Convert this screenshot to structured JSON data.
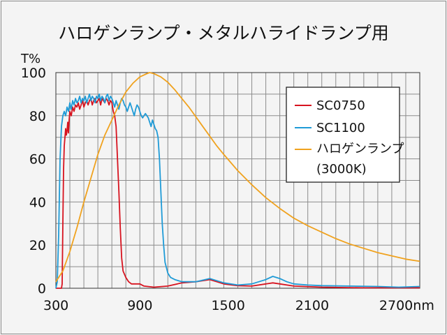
{
  "chart_data": {
    "type": "line",
    "title": "ハロゲンランプ・メタルハライドランプ用",
    "ylabel": "T%",
    "x_unit": "nm",
    "xlim": [
      300,
      2900
    ],
    "ylim": [
      0,
      100
    ],
    "x_ticks": [
      300,
      900,
      1500,
      2100,
      2700
    ],
    "x_tick_labels": [
      "300",
      "900",
      "1500",
      "2100",
      "2700nm"
    ],
    "y_ticks": [
      0,
      20,
      40,
      60,
      80,
      100
    ],
    "y_tick_labels": [
      "0",
      "20",
      "40",
      "60",
      "80",
      "100"
    ],
    "grid": true,
    "legend_position": "top-right",
    "series": [
      {
        "name": "SC0750",
        "color": "#d7131f",
        "points": [
          [
            300,
            0
          ],
          [
            340,
            0
          ],
          [
            345,
            2
          ],
          [
            350,
            30
          ],
          [
            355,
            55
          ],
          [
            360,
            66
          ],
          [
            365,
            70
          ],
          [
            370,
            74
          ],
          [
            375,
            71
          ],
          [
            380,
            73
          ],
          [
            385,
            77
          ],
          [
            390,
            72
          ],
          [
            395,
            78
          ],
          [
            400,
            82
          ],
          [
            410,
            80
          ],
          [
            420,
            84
          ],
          [
            430,
            82
          ],
          [
            440,
            85
          ],
          [
            450,
            84
          ],
          [
            460,
            86
          ],
          [
            470,
            83
          ],
          [
            480,
            85
          ],
          [
            490,
            87
          ],
          [
            500,
            84
          ],
          [
            510,
            86
          ],
          [
            520,
            87
          ],
          [
            530,
            85
          ],
          [
            540,
            87
          ],
          [
            550,
            88
          ],
          [
            560,
            85
          ],
          [
            570,
            87
          ],
          [
            580,
            88
          ],
          [
            590,
            86
          ],
          [
            600,
            87
          ],
          [
            610,
            88
          ],
          [
            620,
            85
          ],
          [
            630,
            88
          ],
          [
            640,
            87
          ],
          [
            650,
            86
          ],
          [
            660,
            88
          ],
          [
            670,
            87
          ],
          [
            680,
            85
          ],
          [
            690,
            87
          ],
          [
            700,
            86
          ],
          [
            710,
            82
          ],
          [
            720,
            80
          ],
          [
            730,
            75
          ],
          [
            740,
            60
          ],
          [
            750,
            45
          ],
          [
            760,
            28
          ],
          [
            770,
            14
          ],
          [
            780,
            8
          ],
          [
            800,
            5
          ],
          [
            820,
            3
          ],
          [
            840,
            2
          ],
          [
            870,
            2
          ],
          [
            900,
            2
          ],
          [
            930,
            1
          ],
          [
            1000,
            0.5
          ],
          [
            1100,
            1
          ],
          [
            1200,
            2.5
          ],
          [
            1300,
            3
          ],
          [
            1400,
            4
          ],
          [
            1450,
            3
          ],
          [
            1500,
            2
          ],
          [
            1600,
            1.2
          ],
          [
            1700,
            1
          ],
          [
            1800,
            2
          ],
          [
            1850,
            2.5
          ],
          [
            1900,
            2
          ],
          [
            2000,
            1
          ],
          [
            2200,
            0.5
          ],
          [
            2500,
            0.2
          ],
          [
            2900,
            0.2
          ]
        ]
      },
      {
        "name": "SC1100",
        "color": "#1f9bd7",
        "points": [
          [
            300,
            0
          ],
          [
            310,
            3
          ],
          [
            320,
            25
          ],
          [
            330,
            60
          ],
          [
            340,
            75
          ],
          [
            350,
            80
          ],
          [
            360,
            82
          ],
          [
            370,
            80
          ],
          [
            380,
            84
          ],
          [
            390,
            82
          ],
          [
            400,
            86
          ],
          [
            410,
            83
          ],
          [
            420,
            87
          ],
          [
            430,
            85
          ],
          [
            440,
            88
          ],
          [
            450,
            86
          ],
          [
            460,
            87
          ],
          [
            470,
            89
          ],
          [
            480,
            86
          ],
          [
            490,
            88
          ],
          [
            500,
            87
          ],
          [
            510,
            89
          ],
          [
            520,
            86
          ],
          [
            530,
            88
          ],
          [
            540,
            90
          ],
          [
            550,
            87
          ],
          [
            560,
            89
          ],
          [
            570,
            88
          ],
          [
            580,
            86
          ],
          [
            590,
            89
          ],
          [
            600,
            88
          ],
          [
            610,
            90
          ],
          [
            620,
            87
          ],
          [
            630,
            89
          ],
          [
            640,
            88
          ],
          [
            650,
            86
          ],
          [
            660,
            89
          ],
          [
            670,
            90
          ],
          [
            680,
            87
          ],
          [
            690,
            89
          ],
          [
            700,
            88
          ],
          [
            710,
            86
          ],
          [
            720,
            84
          ],
          [
            730,
            87
          ],
          [
            740,
            85
          ],
          [
            750,
            83
          ],
          [
            760,
            86
          ],
          [
            770,
            88
          ],
          [
            780,
            87
          ],
          [
            790,
            85
          ],
          [
            800,
            84
          ],
          [
            810,
            82
          ],
          [
            820,
            84
          ],
          [
            830,
            86
          ],
          [
            840,
            84
          ],
          [
            850,
            82
          ],
          [
            860,
            80
          ],
          [
            870,
            83
          ],
          [
            880,
            85
          ],
          [
            890,
            84
          ],
          [
            900,
            82
          ],
          [
            910,
            80
          ],
          [
            920,
            79
          ],
          [
            930,
            80
          ],
          [
            940,
            81
          ],
          [
            950,
            80
          ],
          [
            960,
            79
          ],
          [
            970,
            77
          ],
          [
            980,
            75
          ],
          [
            990,
            78
          ],
          [
            1000,
            76
          ],
          [
            1010,
            74
          ],
          [
            1020,
            73
          ],
          [
            1030,
            70
          ],
          [
            1040,
            60
          ],
          [
            1050,
            45
          ],
          [
            1060,
            30
          ],
          [
            1070,
            20
          ],
          [
            1080,
            12
          ],
          [
            1100,
            7
          ],
          [
            1120,
            5
          ],
          [
            1150,
            4
          ],
          [
            1200,
            3
          ],
          [
            1300,
            3
          ],
          [
            1400,
            4.5
          ],
          [
            1450,
            3.5
          ],
          [
            1500,
            2.5
          ],
          [
            1600,
            1.5
          ],
          [
            1700,
            2
          ],
          [
            1750,
            3
          ],
          [
            1800,
            4
          ],
          [
            1850,
            5.5
          ],
          [
            1900,
            4.5
          ],
          [
            1950,
            3
          ],
          [
            2000,
            2
          ],
          [
            2100,
            1.5
          ],
          [
            2200,
            1.2
          ],
          [
            2400,
            1
          ],
          [
            2600,
            0.8
          ],
          [
            2750,
            0.5
          ],
          [
            2900,
            0.8
          ]
        ]
      },
      {
        "name": "ハロゲンランプ",
        "label_line2": "(3000K)",
        "color": "#f0a21e",
        "points": [
          [
            300,
            3
          ],
          [
            350,
            8
          ],
          [
            400,
            17
          ],
          [
            450,
            28
          ],
          [
            500,
            40
          ],
          [
            550,
            51
          ],
          [
            600,
            62
          ],
          [
            650,
            71
          ],
          [
            700,
            78
          ],
          [
            750,
            85
          ],
          [
            800,
            91
          ],
          [
            850,
            95
          ],
          [
            900,
            98
          ],
          [
            950,
            99.5
          ],
          [
            970,
            100
          ],
          [
            1000,
            99.5
          ],
          [
            1050,
            98
          ],
          [
            1100,
            95.5
          ],
          [
            1150,
            92
          ],
          [
            1200,
            88
          ],
          [
            1250,
            84
          ],
          [
            1300,
            79.5
          ],
          [
            1350,
            75
          ],
          [
            1400,
            70.5
          ],
          [
            1450,
            66
          ],
          [
            1500,
            62
          ],
          [
            1600,
            54.5
          ],
          [
            1700,
            48
          ],
          [
            1800,
            42
          ],
          [
            1900,
            37
          ],
          [
            2000,
            32.5
          ],
          [
            2100,
            29
          ],
          [
            2200,
            26
          ],
          [
            2300,
            23
          ],
          [
            2400,
            20.5
          ],
          [
            2500,
            18.5
          ],
          [
            2600,
            16.5
          ],
          [
            2700,
            15
          ],
          [
            2800,
            13.5
          ],
          [
            2900,
            12.5
          ]
        ]
      }
    ]
  }
}
